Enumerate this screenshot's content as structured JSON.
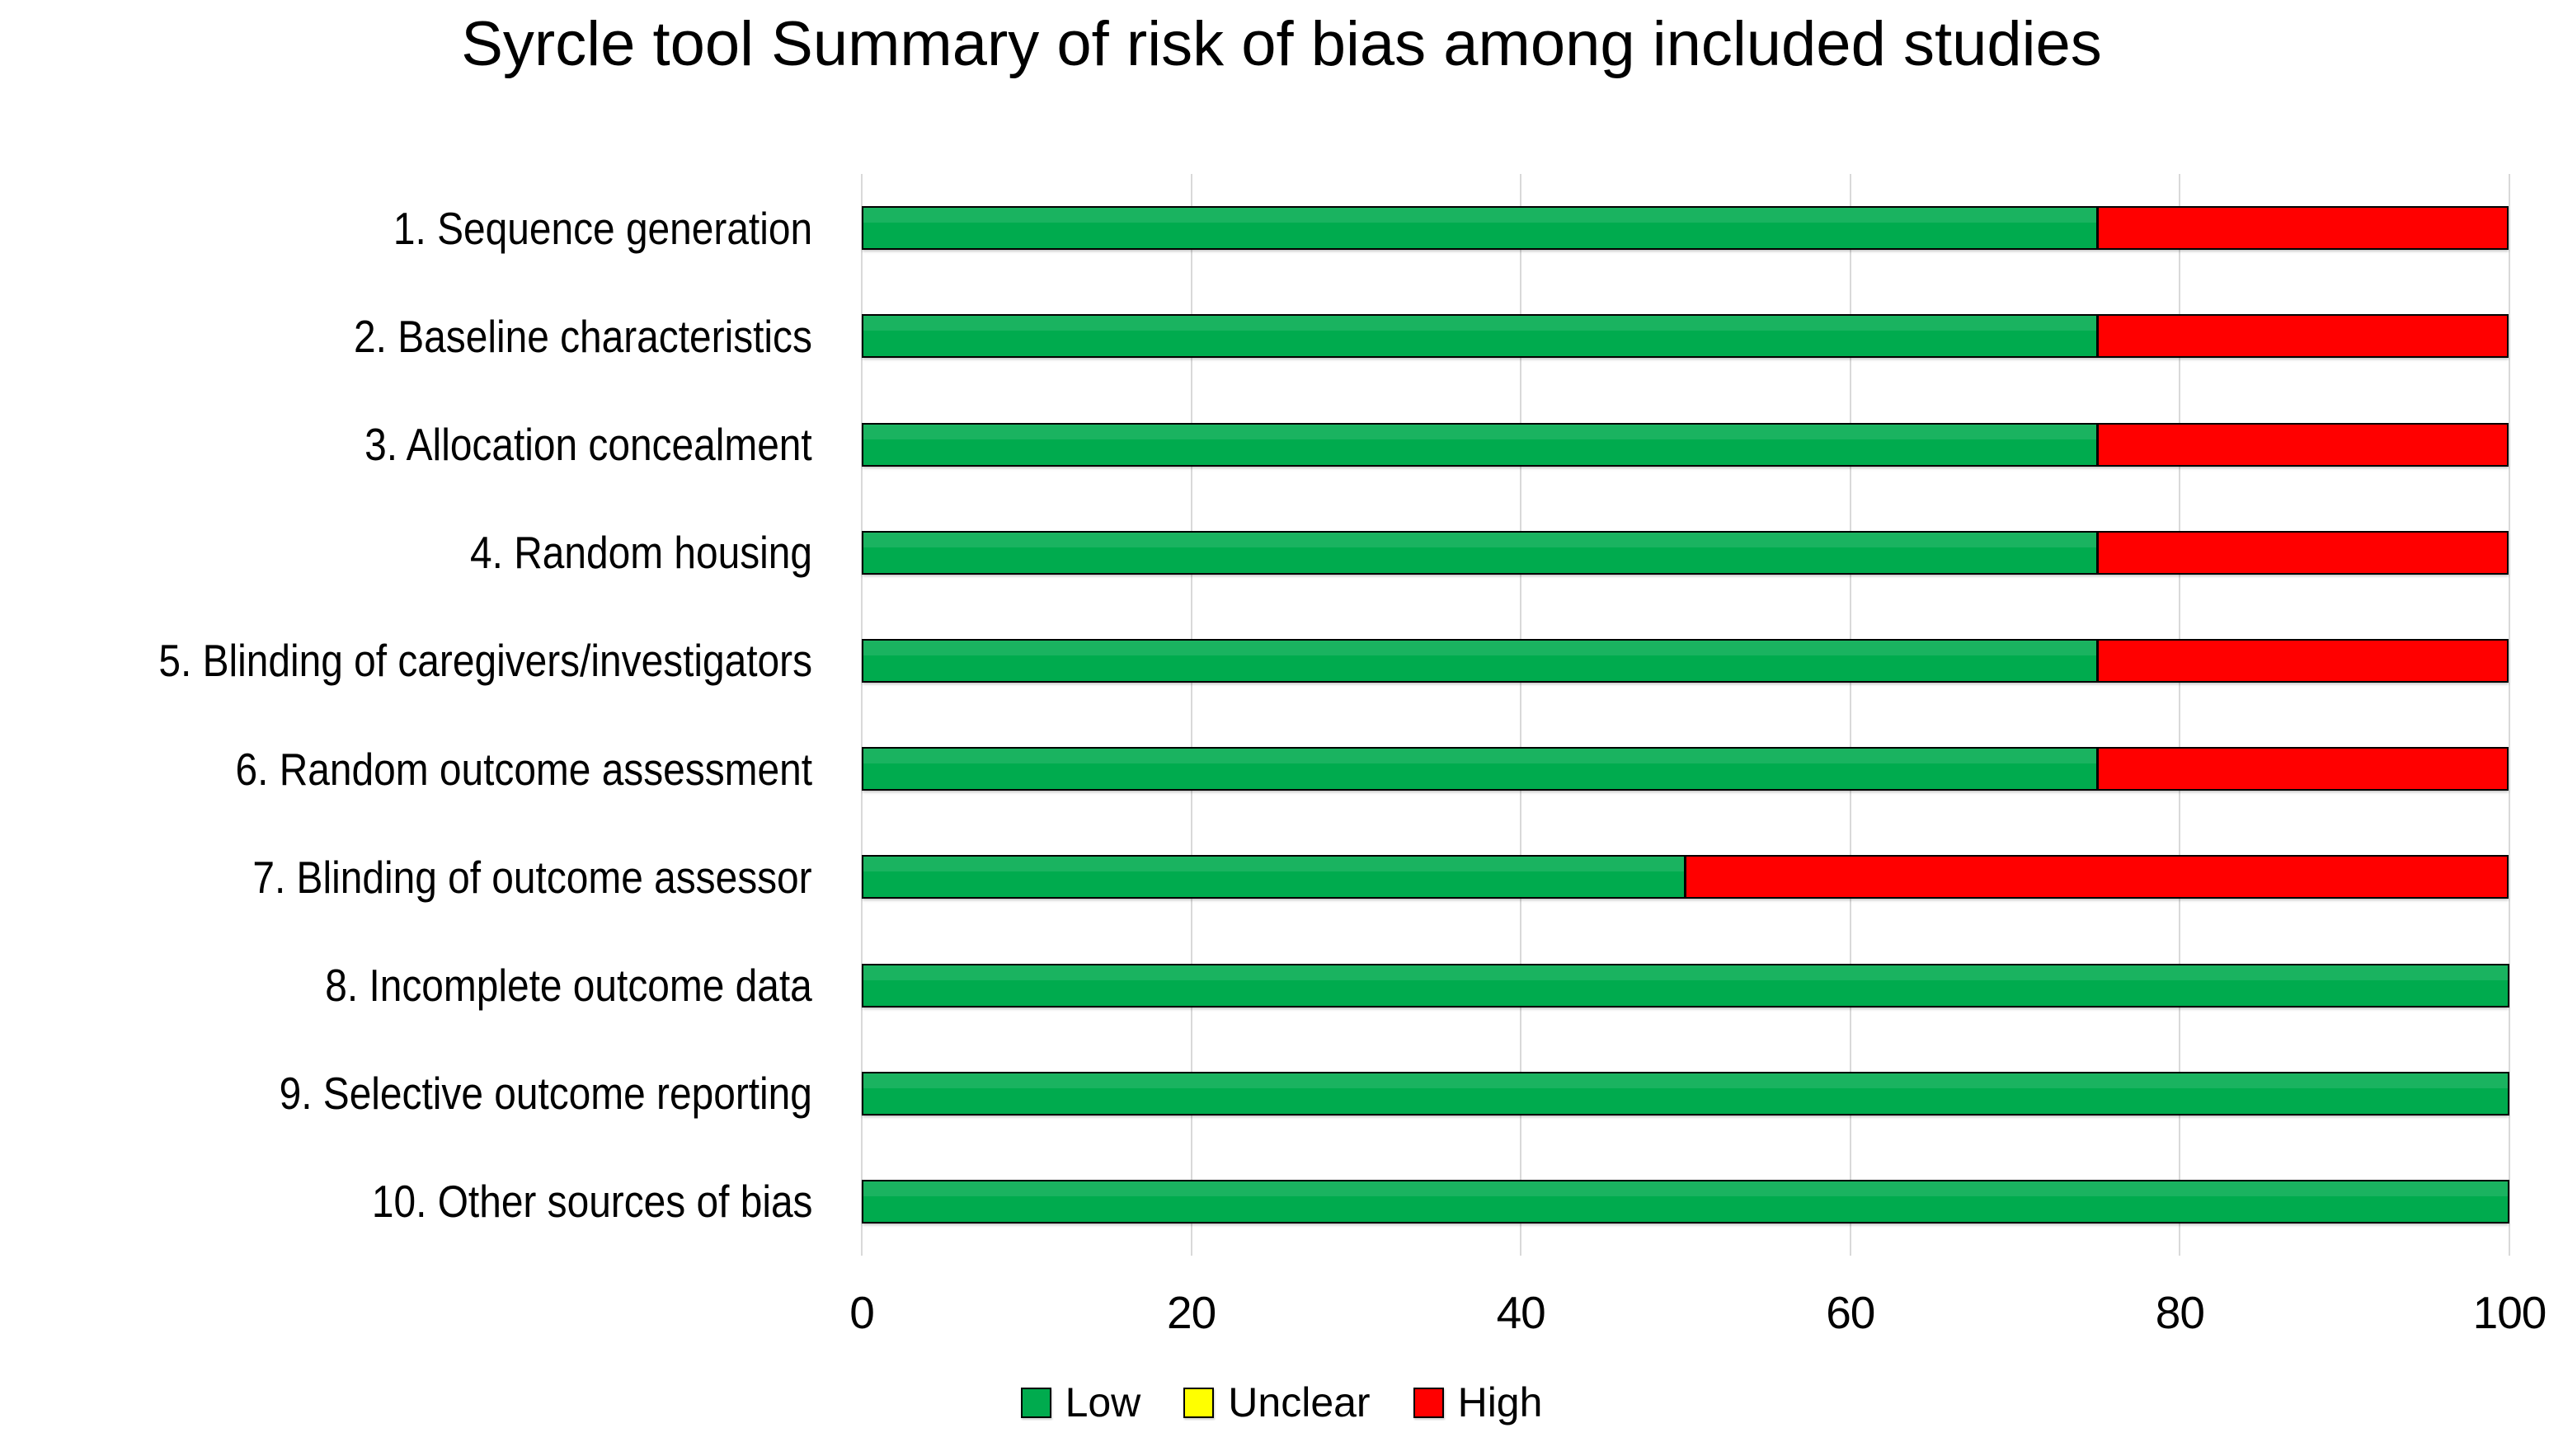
{
  "title": "Syrcle tool Summary of risk of bias among included studies",
  "chart_data": {
    "type": "bar",
    "orientation": "horizontal",
    "stacked": true,
    "title": "Syrcle tool Summary of risk of bias among included studies",
    "categories": [
      "1. Sequence generation",
      "2. Baseline characteristics",
      "3. Allocation concealment",
      "4. Random housing",
      "5. Blinding of caregivers/investigators",
      "6. Random outcome assessment",
      "7. Blinding of outcome assessor",
      "8. Incomplete outcome data",
      "9. Selective outcome reporting",
      "10. Other sources of bias"
    ],
    "series": [
      {
        "name": "Low",
        "color": "#00AB4E",
        "values": [
          75,
          75,
          75,
          75,
          75,
          75,
          50,
          100,
          100,
          100
        ]
      },
      {
        "name": "Unclear",
        "color": "#FFFF00",
        "values": [
          0,
          0,
          0,
          0,
          0,
          0,
          0,
          0,
          0,
          0
        ]
      },
      {
        "name": "High",
        "color": "#FF0000",
        "values": [
          25,
          25,
          25,
          25,
          25,
          25,
          50,
          0,
          0,
          0
        ]
      }
    ],
    "xlabel": "",
    "ylabel": "",
    "xlim": [
      0,
      100
    ],
    "x_ticks": [
      0,
      20,
      40,
      60,
      80,
      100
    ],
    "grid": "vertical",
    "gridline_color": "#D9D9D9",
    "legend_position": "bottom"
  },
  "legend": {
    "items": [
      {
        "label": "Low",
        "color": "#00AB4E"
      },
      {
        "label": "Unclear",
        "color": "#FFFF00"
      },
      {
        "label": "High",
        "color": "#FF0000"
      }
    ]
  }
}
